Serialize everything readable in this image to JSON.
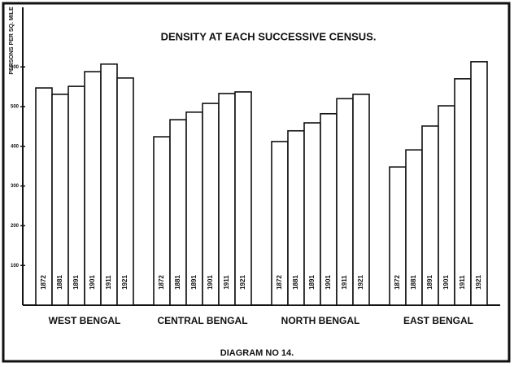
{
  "chart_data": {
    "type": "bar",
    "title": "DENSITY AT EACH SUCCESSIVE CENSUS.",
    "y_label": "PERSONS PER SQ. MILE",
    "footer": "DIAGRAM NO 14.",
    "categories": [
      "WEST BENGAL",
      "CENTRAL BENGAL",
      "NORTH BENGAL",
      "EAST BENGAL"
    ],
    "series": [
      {
        "name": "1872",
        "color": "#ffffff",
        "values": [
          547,
          424,
          412,
          348
        ]
      },
      {
        "name": "1881",
        "color": "#ffffff",
        "values": [
          531,
          467,
          439,
          391
        ]
      },
      {
        "name": "1891",
        "color": "#ffffff",
        "values": [
          551,
          486,
          459,
          451
        ]
      },
      {
        "name": "1901",
        "color": "#ffffff",
        "values": [
          588,
          508,
          482,
          502
        ]
      },
      {
        "name": "1911",
        "color": "#ffffff",
        "values": [
          607,
          533,
          520,
          570
        ]
      },
      {
        "name": "1921",
        "color": "#ffffff",
        "values": [
          572,
          537,
          531,
          613
        ]
      }
    ],
    "ylim": [
      0,
      750
    ],
    "yticks": [
      100,
      200,
      300,
      400,
      500,
      600
    ]
  }
}
